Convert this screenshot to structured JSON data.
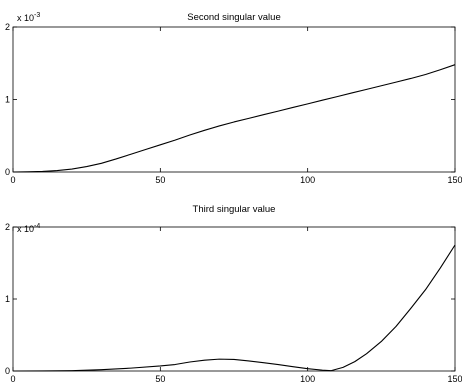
{
  "chart_data": [
    {
      "type": "line",
      "title": "Second singular value",
      "xlabel": "",
      "ylabel": "",
      "xlim": [
        0,
        150
      ],
      "ylim": [
        0,
        2
      ],
      "y_multiplier_text": "x 10",
      "y_multiplier_exponent": "-3",
      "x_ticks": [
        0,
        50,
        100,
        150
      ],
      "y_ticks": [
        0,
        1,
        2
      ],
      "grid": false,
      "legend": "none",
      "series": [
        {
          "color": "#000000",
          "x": [
            0,
            5,
            10,
            15,
            20,
            25,
            30,
            35,
            40,
            45,
            50,
            55,
            60,
            65,
            70,
            75,
            80,
            85,
            90,
            95,
            100,
            105,
            110,
            115,
            120,
            125,
            130,
            135,
            140,
            145,
            150
          ],
          "y": [
            0,
            0.002,
            0.008,
            0.02,
            0.04,
            0.075,
            0.12,
            0.18,
            0.245,
            0.31,
            0.375,
            0.44,
            0.51,
            0.575,
            0.635,
            0.69,
            0.74,
            0.79,
            0.84,
            0.89,
            0.94,
            0.99,
            1.04,
            1.09,
            1.14,
            1.19,
            1.24,
            1.29,
            1.345,
            1.41,
            1.48
          ]
        }
      ]
    },
    {
      "type": "line",
      "title": "Third singular value",
      "xlabel": "",
      "ylabel": "",
      "xlim": [
        0,
        150
      ],
      "ylim": [
        0,
        2
      ],
      "y_multiplier_text": "x 10",
      "y_multiplier_exponent": "-4",
      "x_ticks": [
        0,
        50,
        100,
        150
      ],
      "y_ticks": [
        0,
        1,
        2
      ],
      "grid": false,
      "legend": "none",
      "series": [
        {
          "color": "#000000",
          "x": [
            0,
            10,
            20,
            30,
            40,
            50,
            55,
            60,
            65,
            70,
            75,
            80,
            85,
            90,
            95,
            100,
            105,
            108,
            112,
            116,
            120,
            125,
            130,
            135,
            140,
            145,
            150
          ],
          "y": [
            0,
            0.001,
            0.005,
            0.018,
            0.04,
            0.07,
            0.09,
            0.125,
            0.15,
            0.165,
            0.16,
            0.14,
            0.115,
            0.09,
            0.06,
            0.032,
            0.012,
            0.005,
            0.05,
            0.13,
            0.24,
            0.41,
            0.62,
            0.87,
            1.13,
            1.43,
            1.75
          ]
        }
      ]
    }
  ]
}
